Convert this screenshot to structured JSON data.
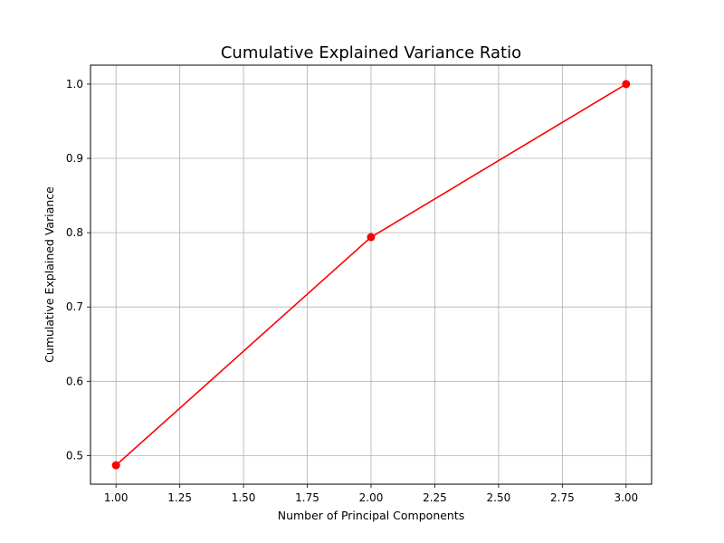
{
  "chart_data": {
    "type": "line",
    "title": "Cumulative Explained Variance Ratio",
    "xlabel": "Number of Principal Components",
    "ylabel": "Cumulative Explained Variance",
    "xlim": [
      0.9,
      3.1
    ],
    "ylim": [
      0.4615,
      1.0255
    ],
    "grid": true,
    "x_ticks": [
      1.0,
      1.25,
      1.5,
      1.75,
      2.0,
      2.25,
      2.5,
      2.75,
      3.0
    ],
    "x_tick_labels": [
      "1.00",
      "1.25",
      "1.50",
      "1.75",
      "2.00",
      "2.25",
      "2.50",
      "2.75",
      "3.00"
    ],
    "y_ticks": [
      0.5,
      0.6,
      0.7,
      0.8,
      0.9,
      1.0
    ],
    "y_tick_labels": [
      "0.5",
      "0.6",
      "0.7",
      "0.8",
      "0.9",
      "1.0"
    ],
    "series": [
      {
        "name": "Cumulative Explained Variance",
        "x": [
          1,
          2,
          3
        ],
        "values": [
          0.487,
          0.794,
          1.0
        ],
        "color": "#ff0000",
        "marker": "circle"
      }
    ]
  }
}
